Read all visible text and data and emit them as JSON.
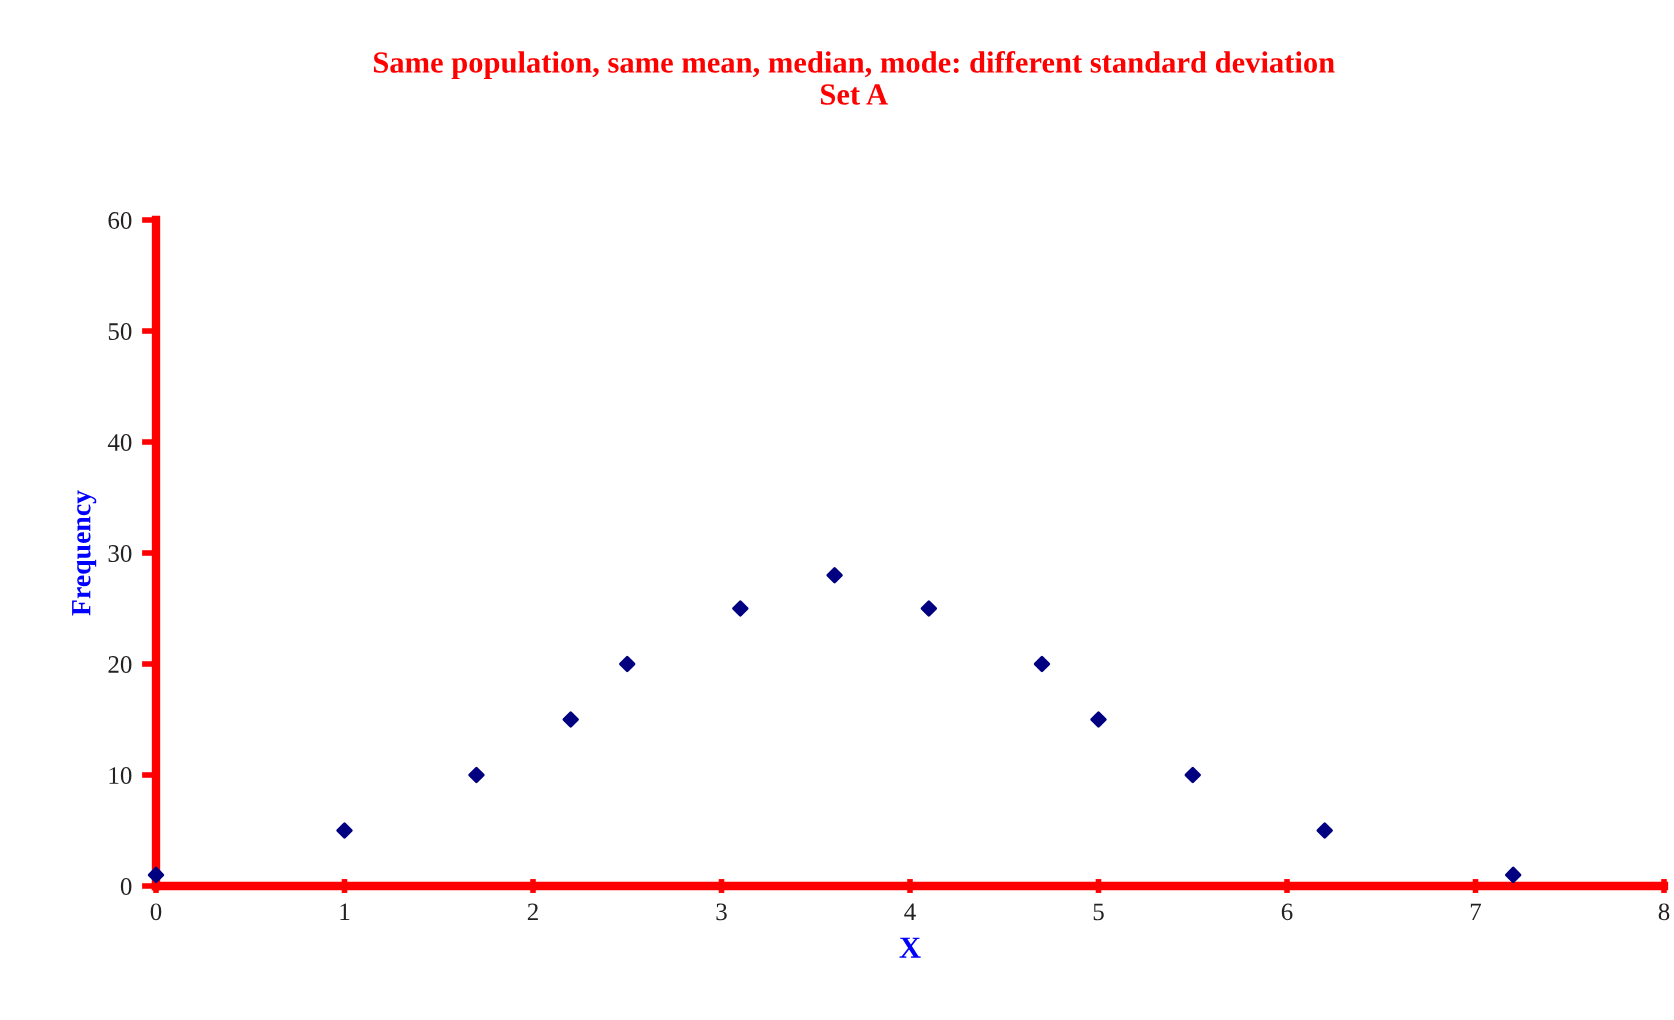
{
  "chart_data": {
    "type": "scatter",
    "title": "Same population, same mean, median, mode: different standard deviation\nSet A",
    "xlabel": "X",
    "ylabel": "Frequency",
    "x": [
      0,
      1,
      1.7,
      2.2,
      2.5,
      3.1,
      3.6,
      4.1,
      4.7,
      5.0,
      5.5,
      6.2,
      7.2
    ],
    "series": [
      {
        "color": "#000080",
        "values": [
          1,
          5,
          10,
          15,
          20,
          25,
          28,
          25,
          20,
          15,
          10,
          5,
          1
        ]
      }
    ],
    "xlim": [
      0,
      8
    ],
    "xticks": [
      0,
      1,
      2,
      3,
      4,
      5,
      6,
      7,
      8
    ],
    "ylim": [
      0,
      60
    ],
    "yticks": [
      0,
      10,
      20,
      30,
      40,
      50,
      60
    ],
    "marker": "diamond",
    "grid": false,
    "legend": false
  }
}
